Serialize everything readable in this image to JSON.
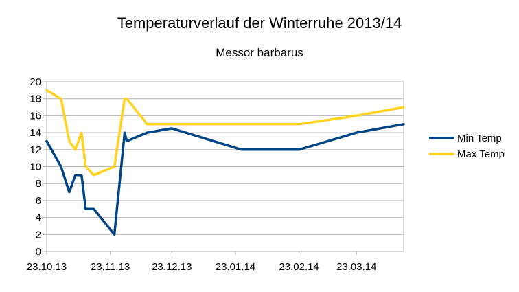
{
  "chart_data": {
    "type": "line",
    "title": "Temperaturverlauf der Winterruhe 2013/14",
    "subtitle": "Messor barbarus",
    "xlabel": "",
    "ylabel": "",
    "ylim": [
      0,
      20
    ],
    "yticks": [
      0,
      2,
      4,
      6,
      8,
      10,
      12,
      14,
      16,
      18,
      20
    ],
    "xlim": [
      "2013-10-23",
      "2014-04-15"
    ],
    "xticks": [
      {
        "date": "2013-10-23",
        "label": "23.10.13"
      },
      {
        "date": "2013-11-23",
        "label": "23.11.13"
      },
      {
        "date": "2013-12-23",
        "label": "23.12.13"
      },
      {
        "date": "2014-01-23",
        "label": "23.01.14"
      },
      {
        "date": "2014-02-23",
        "label": "23.02.14"
      },
      {
        "date": "2014-03-23",
        "label": "23.03.14"
      }
    ],
    "grid": true,
    "legend_position": "right",
    "series": [
      {
        "name": "Min Temp",
        "color": "#004586",
        "points": [
          {
            "x": "2013-10-23",
            "y": 13
          },
          {
            "x": "2013-10-30",
            "y": 10
          },
          {
            "x": "2013-11-03",
            "y": 7
          },
          {
            "x": "2013-11-06",
            "y": 9
          },
          {
            "x": "2013-11-09",
            "y": 9
          },
          {
            "x": "2013-11-11",
            "y": 5
          },
          {
            "x": "2013-11-15",
            "y": 5
          },
          {
            "x": "2013-11-25",
            "y": 2
          },
          {
            "x": "2013-11-30",
            "y": 14
          },
          {
            "x": "2013-12-01",
            "y": 13
          },
          {
            "x": "2013-12-11",
            "y": 14
          },
          {
            "x": "2013-12-23",
            "y": 14.5
          },
          {
            "x": "2014-01-26",
            "y": 12
          },
          {
            "x": "2014-02-23",
            "y": 12
          },
          {
            "x": "2014-03-23",
            "y": 14
          },
          {
            "x": "2014-04-15",
            "y": 15
          }
        ]
      },
      {
        "name": "Max Temp",
        "color": "#ffd320",
        "points": [
          {
            "x": "2013-10-23",
            "y": 19
          },
          {
            "x": "2013-10-30",
            "y": 18
          },
          {
            "x": "2013-11-03",
            "y": 13
          },
          {
            "x": "2013-11-06",
            "y": 12
          },
          {
            "x": "2013-11-09",
            "y": 14
          },
          {
            "x": "2013-11-11",
            "y": 10
          },
          {
            "x": "2013-11-15",
            "y": 9
          },
          {
            "x": "2013-11-25",
            "y": 10
          },
          {
            "x": "2013-11-30",
            "y": 18
          },
          {
            "x": "2013-12-01",
            "y": 18
          },
          {
            "x": "2013-12-11",
            "y": 15
          },
          {
            "x": "2013-12-23",
            "y": 15
          },
          {
            "x": "2014-01-26",
            "y": 15
          },
          {
            "x": "2014-02-23",
            "y": 15
          },
          {
            "x": "2014-03-23",
            "y": 16
          },
          {
            "x": "2014-04-15",
            "y": 17
          }
        ]
      }
    ]
  }
}
